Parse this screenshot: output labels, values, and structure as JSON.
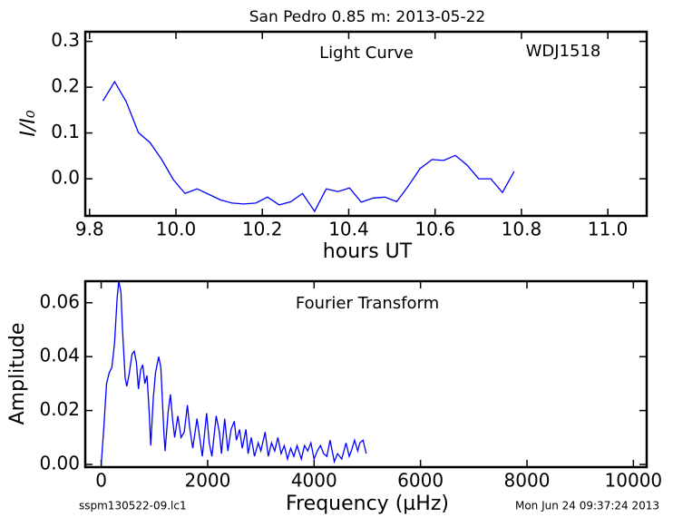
{
  "title": "San Pedro 0.85 m:  2013-05-22",
  "footnotes": [
    "sspm130522-09.lc1",
    "Mon Jun 24 09:37:24 2013"
  ],
  "chart_data": [
    {
      "type": "line",
      "x_label": "hours UT",
      "y_label": "I/I₀",
      "annotations": [
        "Light Curve",
        "WDJ1518"
      ],
      "color": "#0000ff",
      "x": [
        9.831,
        9.858,
        9.885,
        9.913,
        9.94,
        9.967,
        9.994,
        10.021,
        10.049,
        10.076,
        10.103,
        10.13,
        10.157,
        10.185,
        10.212,
        10.239,
        10.266,
        10.293,
        10.321,
        10.348,
        10.375,
        10.402,
        10.429,
        10.457,
        10.484,
        10.511,
        10.538,
        10.565,
        10.593,
        10.62,
        10.647,
        10.674,
        10.701,
        10.729,
        10.756,
        10.783
      ],
      "values": [
        0.17,
        0.212,
        0.168,
        0.101,
        0.079,
        0.042,
        -0.002,
        -0.032,
        -0.022,
        -0.034,
        -0.046,
        -0.053,
        -0.055,
        -0.053,
        -0.04,
        -0.057,
        -0.05,
        -0.032,
        -0.071,
        -0.022,
        -0.028,
        -0.02,
        -0.051,
        -0.042,
        -0.04,
        -0.05,
        -0.016,
        0.022,
        0.042,
        0.04,
        0.051,
        0.03,
        0.0,
        0.0,
        -0.03,
        0.016
      ],
      "xlim": [
        9.79,
        11.09
      ],
      "xticks": [
        9.8,
        {
          "value": 10.0,
          "label": "10.0"
        },
        10.2,
        10.4,
        10.6,
        10.8,
        {
          "value": 11.0,
          "label": "11.0"
        }
      ],
      "ylim": [
        -0.081,
        0.321
      ],
      "yticks": [
        {
          "value": 0,
          "label": "0.0"
        },
        0.1,
        0.2,
        0.3
      ]
    },
    {
      "type": "line",
      "x_label": "Frequency (µHz)",
      "y_label": "Amplitude",
      "annotations": [
        "Fourier Transform"
      ],
      "color": "#0000ff",
      "x": [
        0,
        50,
        100,
        150,
        200,
        250,
        300,
        330,
        370,
        400,
        450,
        480,
        520,
        580,
        620,
        660,
        700,
        740,
        780,
        820,
        860,
        900,
        930,
        980,
        1020,
        1080,
        1120,
        1180,
        1200,
        1260,
        1300,
        1340,
        1380,
        1440,
        1500,
        1560,
        1620,
        1660,
        1720,
        1800,
        1850,
        1900,
        1980,
        2030,
        2080,
        2160,
        2220,
        2260,
        2320,
        2380,
        2440,
        2500,
        2540,
        2600,
        2650,
        2720,
        2760,
        2820,
        2880,
        2950,
        3000,
        3080,
        3140,
        3200,
        3260,
        3320,
        3380,
        3440,
        3500,
        3560,
        3620,
        3680,
        3760,
        3820,
        3880,
        3940,
        4000,
        4060,
        4120,
        4180,
        4240,
        4300,
        4380,
        4440,
        4520,
        4600,
        4660,
        4700,
        4760,
        4820,
        4860,
        4920,
        4980
      ],
      "values": [
        0,
        0.014,
        0.03,
        0.034,
        0.036,
        0.045,
        0.062,
        0.068,
        0.064,
        0.05,
        0.032,
        0.029,
        0.033,
        0.041,
        0.042,
        0.038,
        0.028,
        0.035,
        0.037,
        0.03,
        0.033,
        0.02,
        0.007,
        0.025,
        0.034,
        0.04,
        0.036,
        0.011,
        0.005,
        0.02,
        0.026,
        0.017,
        0.01,
        0.018,
        0.01,
        0.012,
        0.022,
        0.014,
        0.006,
        0.017,
        0.01,
        0.003,
        0.019,
        0.008,
        0.003,
        0.018,
        0.012,
        0.004,
        0.017,
        0.005,
        0.013,
        0.016,
        0.009,
        0.013,
        0.006,
        0.013,
        0.004,
        0.01,
        0.003,
        0.008,
        0.005,
        0.012,
        0.003,
        0.008,
        0.005,
        0.01,
        0.004,
        0.007,
        0.002,
        0.006,
        0.003,
        0.007,
        0.002,
        0.007,
        0.005,
        0.008,
        0.002,
        0.005,
        0.007,
        0.004,
        0.003,
        0.009,
        0.001,
        0.004,
        0.002,
        0.008,
        0.003,
        0.005,
        0.009,
        0.005,
        0.008,
        0.009,
        0.004
      ],
      "xlim": [
        -300,
        10250
      ],
      "xticks": [
        0,
        2000,
        4000,
        6000,
        8000,
        10000
      ],
      "ylim": [
        -0.001,
        0.068
      ],
      "yticks": [
        {
          "value": 0,
          "label": "0.00"
        },
        {
          "value": 0.02,
          "label": "0.02"
        },
        {
          "value": 0.04,
          "label": "0.04"
        },
        {
          "value": 0.06,
          "label": "0.06"
        }
      ]
    }
  ]
}
